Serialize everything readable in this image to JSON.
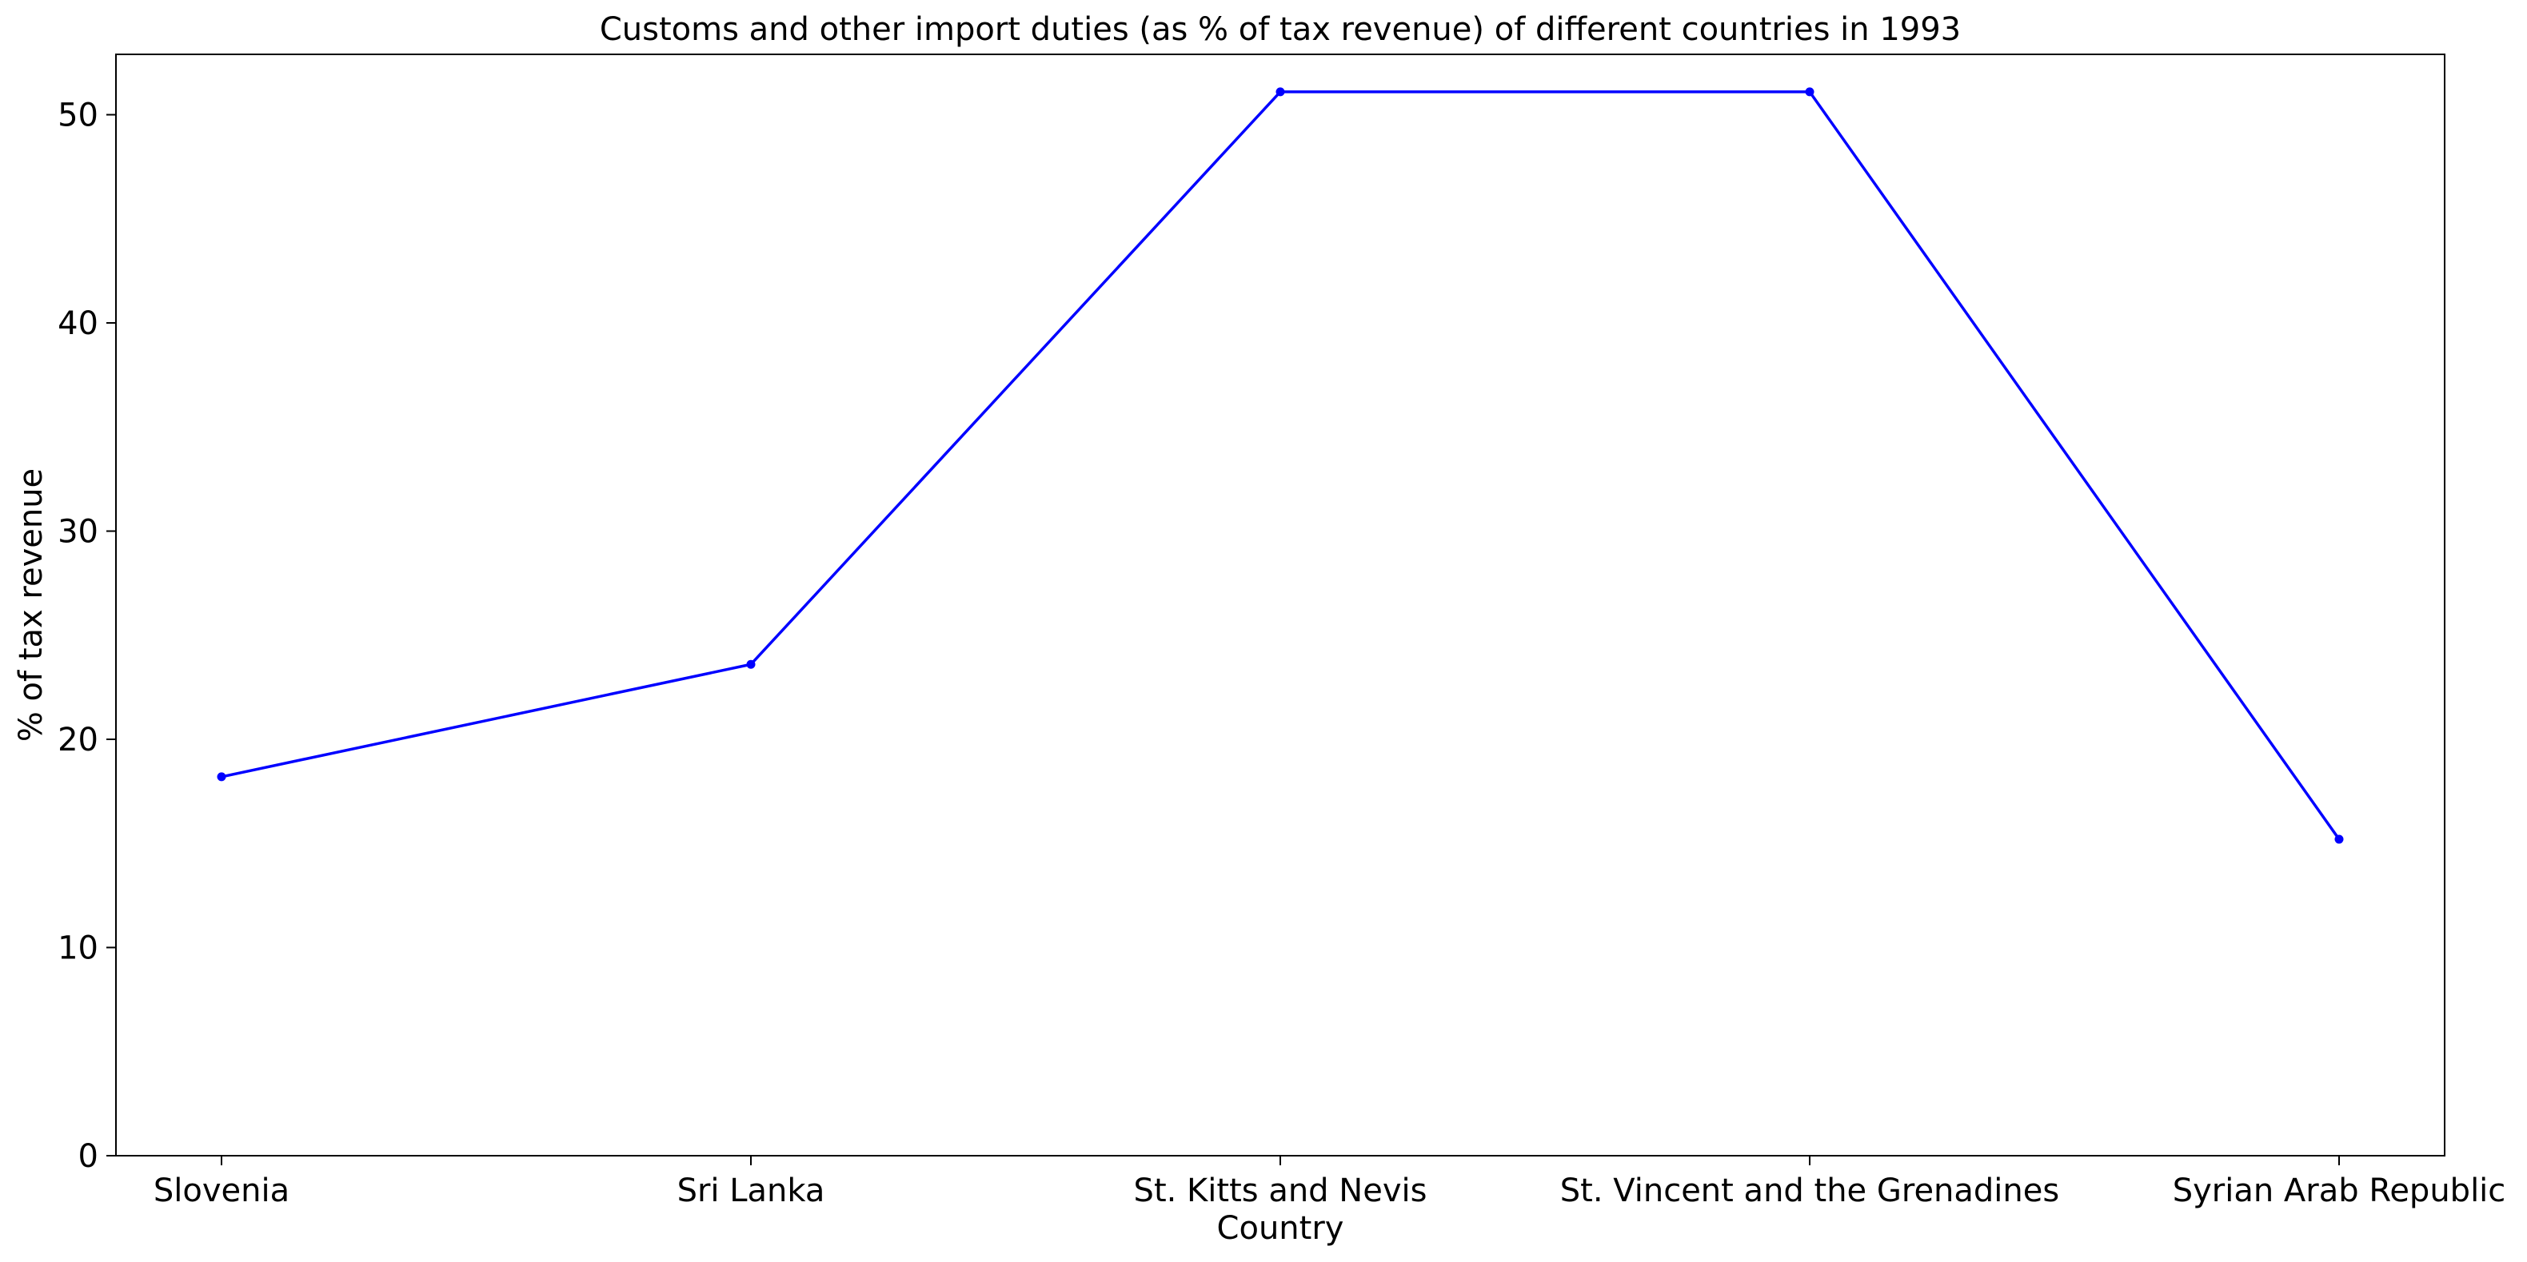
{
  "chart_data": {
    "type": "line",
    "title": "Customs and other import duties (as % of tax revenue) of different countries in 1993",
    "xlabel": "Country",
    "ylabel": "% of tax revenue",
    "categories": [
      "Slovenia",
      "Sri Lanka",
      "St. Kitts and Nevis",
      "St. Vincent and the Grenadines",
      "Syrian Arab Republic"
    ],
    "series": [
      {
        "values": [
          18.2,
          23.6,
          51.1,
          51.1,
          15.2
        ],
        "color": "#0000ff"
      }
    ],
    "ylim": [
      0,
      52.9
    ],
    "yticks": [
      0,
      10,
      20,
      30,
      40,
      50
    ],
    "grid": false,
    "legend": "none"
  }
}
